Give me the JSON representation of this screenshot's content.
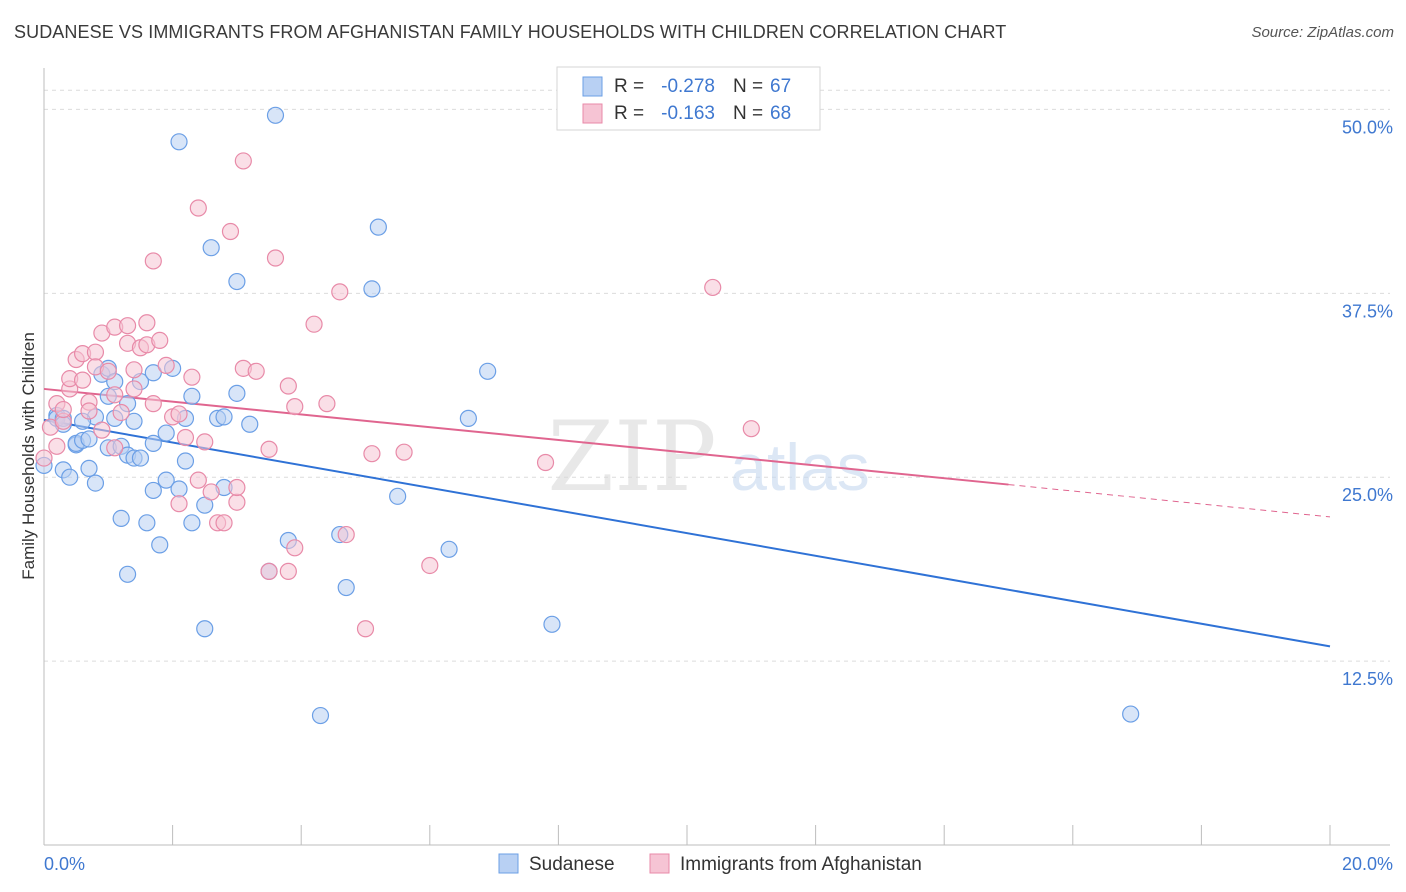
{
  "header": {
    "title": "SUDANESE VS IMMIGRANTS FROM AFGHANISTAN FAMILY HOUSEHOLDS WITH CHILDREN CORRELATION CHART",
    "source": "Source: ZipAtlas.com"
  },
  "colors": {
    "blue": "#6b9fe6",
    "blue_fill": "#b8d0f3",
    "blue_line": "#2f72d6",
    "pink": "#e88aa8",
    "pink_fill": "#f6c4d4",
    "pink_line": "#e0658f",
    "value_text": "#3f78d0"
  },
  "watermark": {
    "zip": "ZIP",
    "atlas": "atlas"
  },
  "chart_data": {
    "type": "scatter",
    "title": "SUDANESE VS IMMIGRANTS FROM AFGHANISTAN FAMILY HOUSEHOLDS WITH CHILDREN CORRELATION CHART",
    "ylabel": "Family Households with Children",
    "xlim": [
      0,
      20
    ],
    "ylim": [
      0,
      52
    ],
    "x_tick_labels": [
      "0.0%",
      "20.0%"
    ],
    "y_ticks": [
      12.5,
      25.0,
      37.5,
      50.0
    ],
    "y_tick_labels": [
      "12.5%",
      "25.0%",
      "37.5%",
      "50.0%"
    ],
    "grid": true,
    "legend_position": "top-center",
    "legend": [
      {
        "r_label": "R =",
        "r_value": "-0.278",
        "n_label": "N =",
        "n_value": "67"
      },
      {
        "r_label": "R =",
        "r_value": "-0.163",
        "n_label": "N =",
        "n_value": "68"
      }
    ],
    "bottom_legend": [
      "Sudanese",
      "Immigrants from Afghanistan"
    ],
    "series": [
      {
        "name": "Sudanese",
        "trend": {
          "x0": 0.0,
          "y0": 28.9,
          "x1": 20.0,
          "y1": 13.5
        },
        "points": [
          [
            0.0,
            25.8
          ],
          [
            0.2,
            29.2
          ],
          [
            0.2,
            29.0
          ],
          [
            0.3,
            29.0
          ],
          [
            0.3,
            25.5
          ],
          [
            0.4,
            25.0
          ],
          [
            0.5,
            27.2
          ],
          [
            0.5,
            27.3
          ],
          [
            0.6,
            27.5
          ],
          [
            0.7,
            27.6
          ],
          [
            0.7,
            25.6
          ],
          [
            0.8,
            24.6
          ],
          [
            0.8,
            29.1
          ],
          [
            0.9,
            32.0
          ],
          [
            1.0,
            32.4
          ],
          [
            1.0,
            27.0
          ],
          [
            1.1,
            29.0
          ],
          [
            1.1,
            31.5
          ],
          [
            1.2,
            27.1
          ],
          [
            1.2,
            22.2
          ],
          [
            1.3,
            18.4
          ],
          [
            1.3,
            26.5
          ],
          [
            1.4,
            26.3
          ],
          [
            1.4,
            28.8
          ],
          [
            1.5,
            31.5
          ],
          [
            1.5,
            26.3
          ],
          [
            1.6,
            21.9
          ],
          [
            1.7,
            27.3
          ],
          [
            1.7,
            32.1
          ],
          [
            1.7,
            24.1
          ],
          [
            1.8,
            20.4
          ],
          [
            1.9,
            28.0
          ],
          [
            1.9,
            24.8
          ],
          [
            2.0,
            32.4
          ],
          [
            2.1,
            24.2
          ],
          [
            2.1,
            47.8
          ],
          [
            2.2,
            29.0
          ],
          [
            2.2,
            26.1
          ],
          [
            2.3,
            21.9
          ],
          [
            2.3,
            30.5
          ],
          [
            2.5,
            23.1
          ],
          [
            2.5,
            14.7
          ],
          [
            2.6,
            40.6
          ],
          [
            2.7,
            29.0
          ],
          [
            2.8,
            24.3
          ],
          [
            3.0,
            30.7
          ],
          [
            3.0,
            38.3
          ],
          [
            3.2,
            28.6
          ],
          [
            3.5,
            18.6
          ],
          [
            3.6,
            49.6
          ],
          [
            3.8,
            20.7
          ],
          [
            4.3,
            8.8
          ],
          [
            4.6,
            21.1
          ],
          [
            4.7,
            17.5
          ],
          [
            5.1,
            37.8
          ],
          [
            5.2,
            42.0
          ],
          [
            5.5,
            23.7
          ],
          [
            6.3,
            20.1
          ],
          [
            6.6,
            29.0
          ],
          [
            6.9,
            32.2
          ],
          [
            7.9,
            15.0
          ],
          [
            16.9,
            8.9
          ],
          [
            0.3,
            28.6
          ],
          [
            1.0,
            30.5
          ],
          [
            2.8,
            29.1
          ],
          [
            1.3,
            30.0
          ],
          [
            0.6,
            28.8
          ]
        ]
      },
      {
        "name": "Immigrants from Afghanistan",
        "trend": {
          "x0": 0.0,
          "y0": 31.0,
          "x1": 15.0,
          "y1": 24.5,
          "x_dash_end": 20.0,
          "y_dash_end": 22.3
        },
        "points": [
          [
            0.0,
            26.3
          ],
          [
            0.1,
            28.4
          ],
          [
            0.2,
            30.0
          ],
          [
            0.3,
            28.8
          ],
          [
            0.3,
            29.6
          ],
          [
            0.4,
            31.0
          ],
          [
            0.4,
            31.7
          ],
          [
            0.5,
            33.0
          ],
          [
            0.6,
            31.6
          ],
          [
            0.6,
            33.4
          ],
          [
            0.7,
            30.1
          ],
          [
            0.7,
            29.5
          ],
          [
            0.8,
            33.5
          ],
          [
            0.8,
            32.5
          ],
          [
            0.9,
            28.2
          ],
          [
            0.9,
            34.8
          ],
          [
            1.0,
            32.2
          ],
          [
            1.1,
            35.2
          ],
          [
            1.1,
            27.0
          ],
          [
            1.1,
            30.6
          ],
          [
            1.2,
            29.4
          ],
          [
            1.3,
            35.3
          ],
          [
            1.3,
            34.1
          ],
          [
            1.4,
            31.0
          ],
          [
            1.4,
            32.3
          ],
          [
            1.5,
            33.8
          ],
          [
            1.6,
            35.5
          ],
          [
            1.6,
            34.0
          ],
          [
            1.7,
            39.7
          ],
          [
            1.7,
            30.0
          ],
          [
            1.8,
            34.3
          ],
          [
            1.9,
            32.6
          ],
          [
            2.0,
            29.1
          ],
          [
            2.1,
            23.2
          ],
          [
            2.1,
            29.3
          ],
          [
            2.2,
            27.7
          ],
          [
            2.3,
            31.8
          ],
          [
            2.4,
            43.3
          ],
          [
            2.4,
            24.8
          ],
          [
            2.5,
            27.4
          ],
          [
            2.6,
            24.0
          ],
          [
            2.7,
            21.9
          ],
          [
            2.8,
            21.9
          ],
          [
            2.9,
            41.7
          ],
          [
            3.0,
            23.3
          ],
          [
            3.0,
            24.3
          ],
          [
            3.1,
            46.5
          ],
          [
            3.1,
            32.4
          ],
          [
            3.3,
            32.2
          ],
          [
            3.5,
            18.6
          ],
          [
            3.5,
            26.9
          ],
          [
            3.6,
            39.9
          ],
          [
            3.8,
            18.6
          ],
          [
            3.8,
            31.2
          ],
          [
            3.9,
            29.8
          ],
          [
            3.9,
            20.2
          ],
          [
            4.2,
            35.4
          ],
          [
            4.4,
            30.0
          ],
          [
            4.6,
            37.6
          ],
          [
            4.7,
            21.1
          ],
          [
            5.0,
            14.7
          ],
          [
            5.1,
            26.6
          ],
          [
            5.6,
            26.7
          ],
          [
            6.0,
            19.0
          ],
          [
            7.8,
            26.0
          ],
          [
            10.4,
            37.9
          ],
          [
            11.0,
            28.3
          ],
          [
            0.2,
            27.1
          ]
        ]
      }
    ]
  }
}
